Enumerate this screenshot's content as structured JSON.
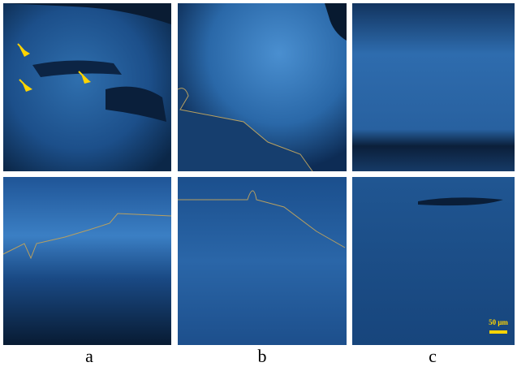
{
  "column_labels": [
    "a",
    "b",
    "c"
  ],
  "scale_bar": {
    "label": "50 μm"
  }
}
